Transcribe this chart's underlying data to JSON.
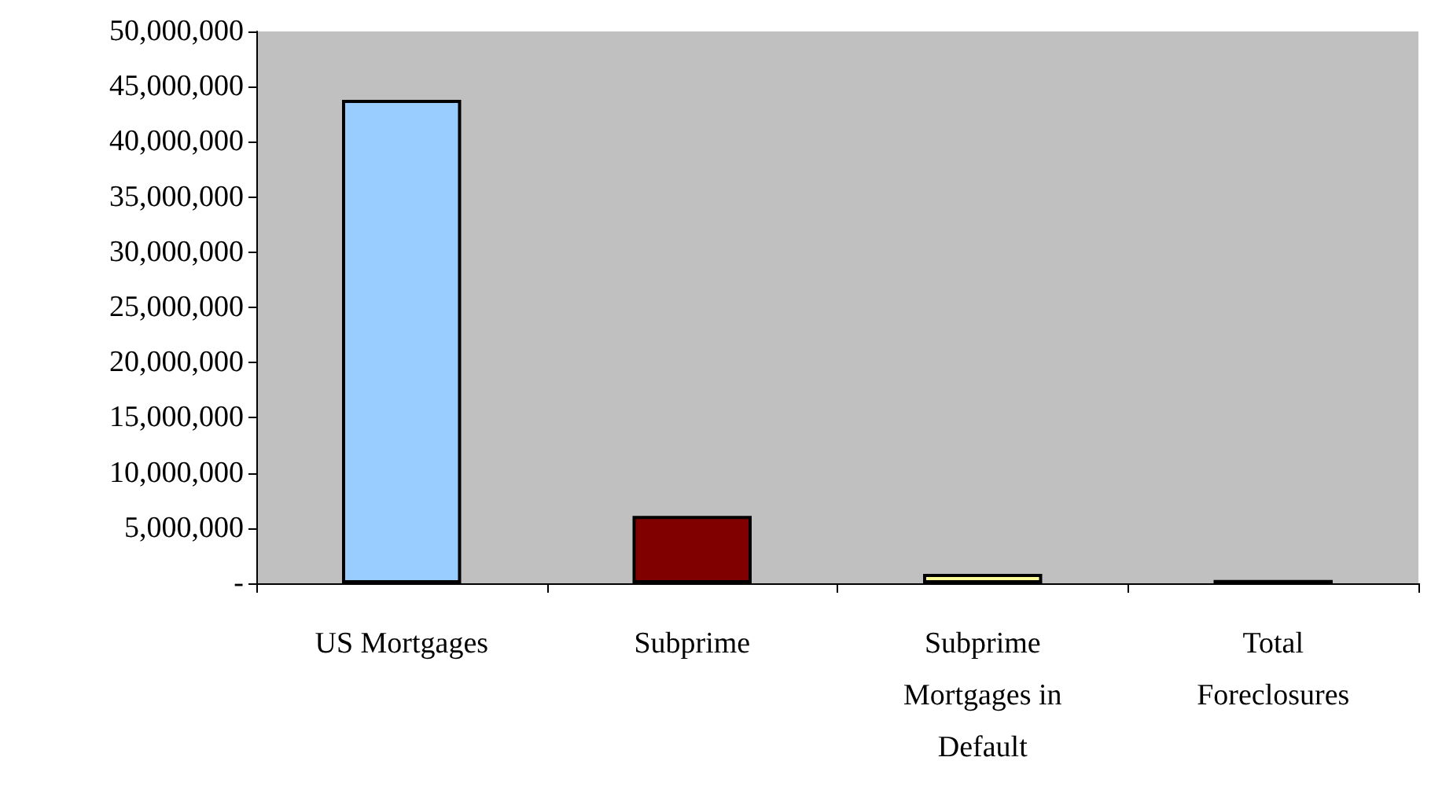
{
  "chart_data": {
    "type": "bar",
    "categories": [
      "US Mortgages",
      "Subprime",
      "Subprime\nMortgages in\nDefault",
      "Total\nForeclosures"
    ],
    "values": [
      43800000,
      6100000,
      850000,
      300000
    ],
    "colors": [
      "#99ccff",
      "#800000",
      "#ffff99",
      "#000000"
    ],
    "ylim": [
      0,
      50000000
    ],
    "yticks": [
      {
        "value": 0,
        "label": "-"
      },
      {
        "value": 5000000,
        "label": "5,000,000"
      },
      {
        "value": 10000000,
        "label": "10,000,000"
      },
      {
        "value": 15000000,
        "label": "15,000,000"
      },
      {
        "value": 20000000,
        "label": "20,000,000"
      },
      {
        "value": 25000000,
        "label": "25,000,000"
      },
      {
        "value": 30000000,
        "label": "30,000,000"
      },
      {
        "value": 35000000,
        "label": "35,000,000"
      },
      {
        "value": 40000000,
        "label": "40,000,000"
      },
      {
        "value": 45000000,
        "label": "45,000,000"
      },
      {
        "value": 50000000,
        "label": "50,000,000"
      }
    ],
    "grid": false
  }
}
